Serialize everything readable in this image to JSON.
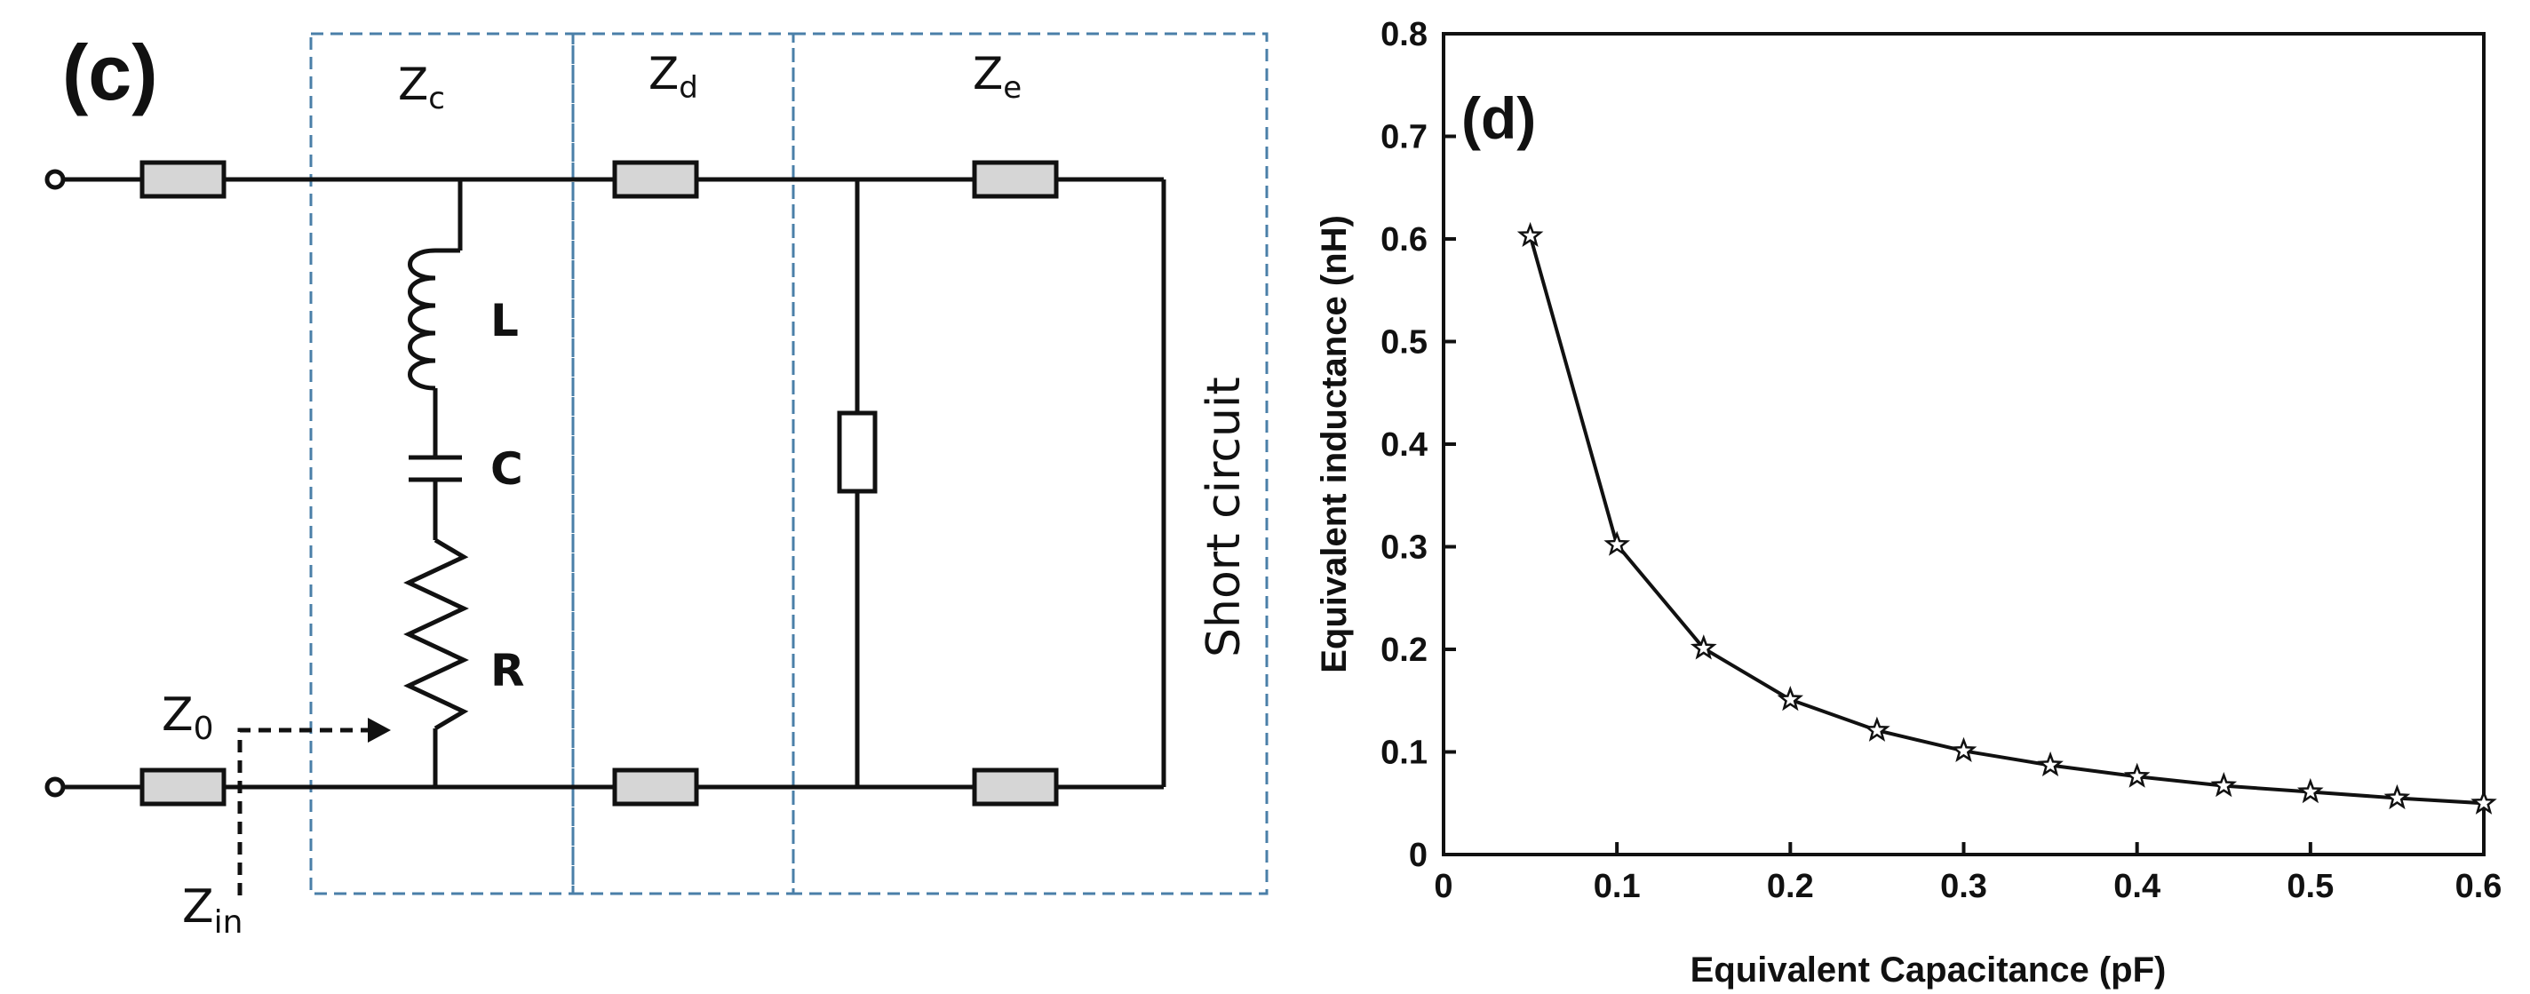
{
  "circuit": {
    "panel_label": "(c)",
    "section_labels": {
      "zc": "Z",
      "zc_sub": "c",
      "zd": "Z",
      "zd_sub": "d",
      "ze": "Z",
      "ze_sub": "e"
    },
    "z0": "Z",
    "z0_sub": "0",
    "zin": "Z",
    "zin_sub": "in",
    "component_labels": {
      "inductor": "L",
      "capacitor": "C",
      "resistor": "R"
    },
    "short_circuit_label": "Short circuit"
  },
  "chart_data": {
    "type": "line",
    "panel_label": "(d)",
    "title": "",
    "xlabel": "Equivalent Capacitance (pF)",
    "ylabel": "Equivalent inductance (nH)",
    "xlim": [
      0,
      0.6
    ],
    "ylim": [
      0,
      0.8
    ],
    "x_ticks": [
      "0",
      "0.1",
      "0.2",
      "0.3",
      "0.4",
      "0.5",
      "0.6"
    ],
    "y_ticks": [
      "0",
      "0.1",
      "0.2",
      "0.3",
      "0.4",
      "0.5",
      "0.6",
      "0.7",
      "0.8"
    ],
    "marker": "star",
    "line_color": "#111111",
    "grid": false,
    "x": [
      0.05,
      0.1,
      0.15,
      0.2,
      0.25,
      0.3,
      0.35,
      0.4,
      0.45,
      0.5,
      0.55,
      0.6
    ],
    "y": [
      0.603,
      0.302,
      0.201,
      0.151,
      0.121,
      0.101,
      0.087,
      0.076,
      0.067,
      0.061,
      0.055,
      0.05
    ]
  }
}
